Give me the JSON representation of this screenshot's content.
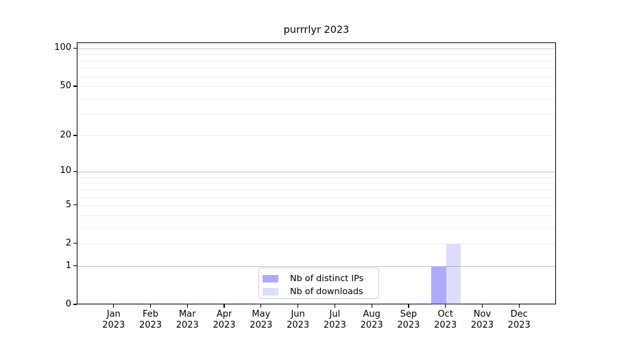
{
  "chart_data": {
    "type": "bar",
    "title": "purrrlyr 2023",
    "categories": [
      "Jan 2023",
      "Feb 2023",
      "Mar 2023",
      "Apr 2023",
      "May 2023",
      "Jun 2023",
      "Jul 2023",
      "Aug 2023",
      "Sep 2023",
      "Oct 2023",
      "Nov 2023",
      "Dec 2023"
    ],
    "series": [
      {
        "name": "Nb of distinct IPs",
        "color": "rgba(70,70,245,0.45)",
        "values": [
          0,
          0,
          0,
          0,
          0,
          0,
          0,
          0,
          0,
          1,
          0,
          0
        ]
      },
      {
        "name": "Nb of downloads",
        "color": "rgba(70,70,245,0.19)",
        "values": [
          0,
          0,
          0,
          0,
          0,
          0,
          0,
          0,
          0,
          2,
          0,
          0
        ]
      }
    ],
    "xlabel": "",
    "ylabel": "",
    "yscale": "log1p",
    "ylim": [
      0,
      111
    ],
    "yticks": [
      0,
      1,
      2,
      5,
      10,
      20,
      50,
      100
    ],
    "grid": {
      "on": true,
      "major_values": [
        1,
        10,
        100
      ],
      "minor_values": [
        2,
        3,
        4,
        5,
        6,
        7,
        8,
        9,
        20,
        30,
        40,
        50,
        60,
        70,
        80,
        90
      ],
      "major_color": "#c4c4c4",
      "minor_color": "#ececec"
    },
    "legend": {
      "position": "lower center",
      "entries": [
        "Nb of distinct IPs",
        "Nb of downloads"
      ]
    },
    "axis_color": "#000000",
    "background_color": "#ffffff"
  }
}
